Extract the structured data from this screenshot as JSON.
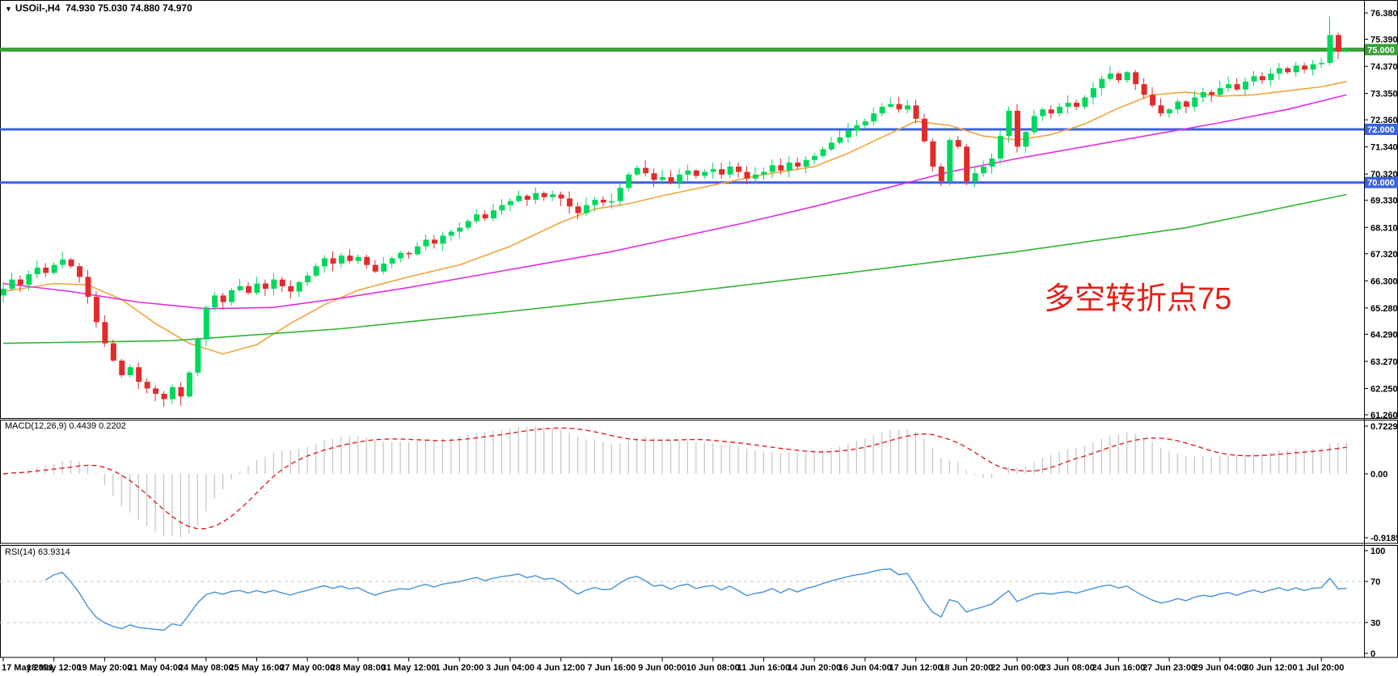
{
  "window": {
    "symbol": "USOil-,H4",
    "ohlc_text": "74.930 75.030 74.880 74.970",
    "dropdown_icon": "▼"
  },
  "panels": {
    "macd_label": "MACD(12,26,9) 0.4439 0.2202",
    "rsi_label": "RSI(14) 63.9314"
  },
  "annotation": {
    "text": "多空转折点75"
  },
  "colors": {
    "up": "#00d85c",
    "down": "#e02c2c",
    "ma_fast": "#f2a33c",
    "ma_mid": "#e22ce2",
    "ma_slow": "#32b432",
    "level_green": "#38a038",
    "level_blue": "#3c62dd",
    "macd_bar": "#c4c4c4",
    "macd_signal": "#dd2222",
    "rsi": "#4791d6",
    "rsi_grid": "#c8c8c8",
    "annotation": "#e32117",
    "border": "#000000"
  },
  "chart_data": {
    "type": "candlestick+indicators",
    "symbol": "USOil-",
    "timeframe": "H4",
    "current_bar": {
      "open": 74.93,
      "high": 75.03,
      "low": 74.88,
      "close": 74.97
    },
    "first_open": 65.75,
    "closes": [
      66.0,
      66.35,
      66.15,
      66.55,
      66.8,
      66.6,
      66.9,
      67.1,
      66.85,
      66.45,
      65.7,
      64.75,
      63.95,
      63.3,
      62.75,
      63.05,
      62.5,
      62.25,
      62.05,
      61.85,
      62.3,
      61.95,
      62.85,
      64.1,
      65.3,
      65.75,
      65.5,
      65.95,
      66.1,
      65.85,
      66.2,
      66.0,
      66.35,
      66.1,
      65.9,
      66.25,
      66.5,
      66.85,
      67.15,
      66.95,
      67.25,
      67.05,
      67.2,
      66.9,
      66.65,
      66.95,
      67.15,
      67.35,
      67.3,
      67.6,
      67.85,
      67.7,
      68.0,
      68.15,
      68.3,
      68.55,
      68.8,
      68.65,
      68.95,
      69.15,
      69.3,
      69.5,
      69.35,
      69.6,
      69.45,
      69.55,
      69.4,
      69.1,
      68.85,
      69.15,
      69.35,
      69.25,
      69.3,
      69.8,
      70.3,
      70.55,
      70.35,
      70.1,
      70.2,
      70.0,
      70.3,
      70.45,
      70.25,
      70.4,
      70.5,
      70.3,
      70.6,
      70.4,
      70.15,
      70.3,
      70.4,
      70.65,
      70.45,
      70.75,
      70.6,
      70.85,
      71.0,
      71.25,
      71.5,
      71.7,
      71.95,
      72.15,
      72.3,
      72.6,
      72.85,
      72.95,
      72.75,
      72.9,
      72.4,
      71.55,
      70.6,
      70.05,
      71.6,
      71.35,
      70.05,
      70.35,
      70.6,
      70.9,
      71.75,
      72.7,
      71.35,
      71.9,
      72.5,
      72.75,
      72.6,
      72.85,
      73.0,
      72.85,
      73.2,
      73.55,
      73.9,
      74.1,
      73.85,
      74.15,
      73.7,
      73.3,
      72.9,
      72.6,
      72.75,
      73.05,
      72.85,
      73.2,
      73.4,
      73.3,
      73.55,
      73.7,
      73.5,
      73.8,
      74.0,
      73.85,
      74.1,
      74.3,
      74.15,
      74.4,
      74.25,
      74.45,
      74.5,
      75.55,
      74.93,
      74.97
    ],
    "overrides": {
      "7": {
        "high": 67.4
      },
      "19": {
        "low": 61.56
      },
      "21": {
        "low": 61.6
      },
      "111": {
        "low": 69.87
      },
      "114": {
        "low": 69.9
      },
      "137": {
        "low": 72.48
      },
      "157": {
        "high": 76.25
      },
      "159": {
        "open": 74.93,
        "high": 75.03,
        "low": 74.88,
        "close": 74.97
      }
    },
    "moving_averages": [
      {
        "name": "ma-fast-orange",
        "color_key": "ma_fast",
        "points": [
          [
            0,
            65.9
          ],
          [
            6,
            66.2
          ],
          [
            10,
            66.15
          ],
          [
            14,
            65.6
          ],
          [
            18,
            64.7
          ],
          [
            22,
            63.95
          ],
          [
            26,
            63.55
          ],
          [
            30,
            63.9
          ],
          [
            34,
            64.7
          ],
          [
            38,
            65.4
          ],
          [
            42,
            65.95
          ],
          [
            48,
            66.45
          ],
          [
            54,
            66.9
          ],
          [
            60,
            67.6
          ],
          [
            66,
            68.5
          ],
          [
            70,
            69.0
          ],
          [
            74,
            69.2
          ],
          [
            78,
            69.5
          ],
          [
            84,
            69.9
          ],
          [
            90,
            70.3
          ],
          [
            96,
            70.6
          ],
          [
            100,
            71.1
          ],
          [
            104,
            71.7
          ],
          [
            108,
            72.3
          ],
          [
            112,
            72.15
          ],
          [
            116,
            71.75
          ],
          [
            120,
            71.6
          ],
          [
            124,
            71.8
          ],
          [
            128,
            72.2
          ],
          [
            132,
            72.8
          ],
          [
            136,
            73.3
          ],
          [
            140,
            73.4
          ],
          [
            144,
            73.25
          ],
          [
            148,
            73.3
          ],
          [
            152,
            73.45
          ],
          [
            156,
            73.6
          ],
          [
            159,
            73.8
          ]
        ]
      },
      {
        "name": "ma-mid-magenta",
        "color_key": "ma_mid",
        "points": [
          [
            0,
            66.2
          ],
          [
            8,
            65.9
          ],
          [
            16,
            65.5
          ],
          [
            24,
            65.25
          ],
          [
            32,
            65.3
          ],
          [
            40,
            65.65
          ],
          [
            48,
            66.05
          ],
          [
            56,
            66.5
          ],
          [
            64,
            66.95
          ],
          [
            72,
            67.4
          ],
          [
            80,
            67.95
          ],
          [
            88,
            68.5
          ],
          [
            96,
            69.1
          ],
          [
            104,
            69.75
          ],
          [
            112,
            70.4
          ],
          [
            120,
            70.9
          ],
          [
            128,
            71.35
          ],
          [
            136,
            71.8
          ],
          [
            144,
            72.25
          ],
          [
            152,
            72.75
          ],
          [
            159,
            73.3
          ]
        ]
      },
      {
        "name": "ma-slow-green",
        "color_key": "ma_slow",
        "points": [
          [
            0,
            63.95
          ],
          [
            20,
            64.05
          ],
          [
            40,
            64.5
          ],
          [
            60,
            65.15
          ],
          [
            80,
            65.85
          ],
          [
            100,
            66.6
          ],
          [
            120,
            67.4
          ],
          [
            140,
            68.3
          ],
          [
            159,
            69.55
          ]
        ]
      }
    ],
    "levels": [
      {
        "price": 75.0,
        "label": "75.000",
        "color_key": "level_green",
        "width": 5
      },
      {
        "price": 72.0,
        "label": "72.000",
        "color_key": "level_blue",
        "width": 3
      },
      {
        "price": 70.0,
        "label": "70.000",
        "color_key": "level_blue",
        "width": 3
      }
    ],
    "price_ticks": [
      76.38,
      75.39,
      74.37,
      73.35,
      72.36,
      71.34,
      70.32,
      69.33,
      68.31,
      67.32,
      66.3,
      65.28,
      64.29,
      63.27,
      62.25,
      61.26
    ],
    "macd": {
      "fast": 12,
      "slow": 26,
      "signal": 9,
      "value": 0.4439,
      "signal_value": 0.2202,
      "axis_labels": [
        "0.7229",
        "0.00",
        "-0.9185"
      ],
      "max": 0.7229,
      "min": -0.9185
    },
    "rsi": {
      "period": 14,
      "value": 63.9314,
      "axis_labels": [
        "100",
        "70",
        "30",
        "0"
      ],
      "levels": [
        70,
        30
      ]
    },
    "time_labels": [
      "17 May 2021",
      "18 May 12:00",
      "19 May 20:00",
      "21 May 04:00",
      "24 May 08:00",
      "25 May 16:00",
      "27 May 00:00",
      "28 May 08:00",
      "31 May 12:00",
      "1 Jun 20:00",
      "3 Jun 04:00",
      "4 Jun 12:00",
      "7 Jun 16:00",
      "9 Jun 00:00",
      "10 Jun 08:00",
      "11 Jun 16:00",
      "14 Jun 20:00",
      "16 Jun 04:00",
      "17 Jun 12:00",
      "18 Jun 20:00",
      "22 Jun 00:00",
      "23 Jun 08:00",
      "24 Jun 16:00",
      "27 Jun 23:00",
      "29 Jun 04:00",
      "30 Jun 12:00",
      "1 Jul 20:00"
    ]
  }
}
